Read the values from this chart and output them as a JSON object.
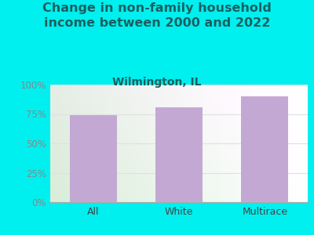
{
  "title": "Change in non-family household\nincome between 2000 and 2022",
  "subtitle": "Wilmington, IL",
  "categories": [
    "All",
    "White",
    "Multirace"
  ],
  "values": [
    74,
    81,
    90
  ],
  "bar_color": "#c4a8d4",
  "background_color": "#00efef",
  "plot_bg_left": "#d8edcc",
  "plot_bg_right": "#f0f5ee",
  "title_color": "#1a6060",
  "subtitle_color": "#1a6060",
  "ytick_color": "#888888",
  "xtick_color": "#444444",
  "ylim": [
    0,
    100
  ],
  "yticks": [
    0,
    25,
    50,
    75,
    100
  ],
  "ytick_labels": [
    "0%",
    "25%",
    "50%",
    "75%",
    "100%"
  ],
  "title_fontsize": 11.5,
  "subtitle_fontsize": 10,
  "bar_width": 0.55,
  "grid_color": "#e0e0e0"
}
